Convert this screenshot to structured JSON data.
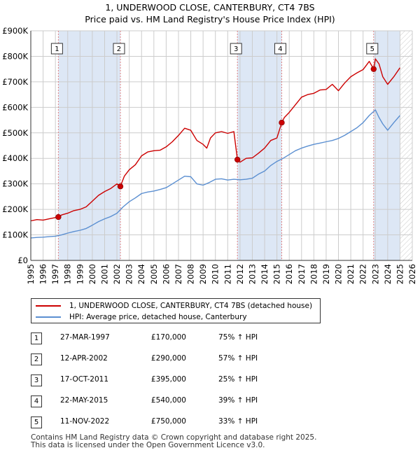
{
  "title_line1": "1, UNDERWOOD CLOSE, CANTERBURY, CT4 7BS",
  "title_line2": "Price paid vs. HM Land Registry's House Price Index (HPI)",
  "legend": {
    "property": "1, UNDERWOOD CLOSE, CANTERBURY, CT4 7BS (detached house)",
    "hpi": "HPI: Average price, detached house, Canterbury"
  },
  "colors": {
    "property_line": "#cc0000",
    "hpi_line": "#5b8fd1",
    "shade": "#dde7f5",
    "marker_line": "#e08080",
    "grid": "#cccccc"
  },
  "chart_data": {
    "type": "line",
    "title": "1, UNDERWOOD CLOSE, CANTERBURY, CT4 7BS — Price paid vs. HM Land Registry's House Price Index (HPI)",
    "xlabel": "",
    "ylabel": "",
    "xlim": [
      1995,
      2026
    ],
    "ylim": [
      0,
      900000
    ],
    "x_ticks": [
      "1995",
      "1996",
      "1997",
      "1998",
      "1999",
      "2000",
      "2001",
      "2002",
      "2003",
      "2004",
      "2005",
      "2006",
      "2007",
      "2008",
      "2009",
      "2010",
      "2011",
      "2012",
      "2013",
      "2014",
      "2015",
      "2016",
      "2017",
      "2018",
      "2019",
      "2020",
      "2021",
      "2022",
      "2023",
      "2024",
      "2025",
      "2026"
    ],
    "y_ticks": [
      {
        "value": 0,
        "label": "£0"
      },
      {
        "value": 100000,
        "label": "£100K"
      },
      {
        "value": 200000,
        "label": "£200K"
      },
      {
        "value": 300000,
        "label": "£300K"
      },
      {
        "value": 400000,
        "label": "£400K"
      },
      {
        "value": 500000,
        "label": "£500K"
      },
      {
        "value": 600000,
        "label": "£600K"
      },
      {
        "value": 700000,
        "label": "£700K"
      },
      {
        "value": 800000,
        "label": "£800K"
      },
      {
        "value": 900000,
        "label": "£900K"
      }
    ],
    "shaded_spans": [
      [
        1997.24,
        2002.28
      ],
      [
        2011.79,
        2015.39
      ],
      [
        2022.86,
        2025.0
      ]
    ],
    "future_hatch_from": 2025.0,
    "series": [
      {
        "name": "1, UNDERWOOD CLOSE, CANTERBURY, CT4 7BS (detached house)",
        "x": [
          1995.0,
          1995.5,
          1996.0,
          1996.5,
          1997.0,
          1997.24,
          1997.5,
          1998.0,
          1998.5,
          1999.0,
          1999.5,
          2000.0,
          2000.5,
          2001.0,
          2001.5,
          2002.0,
          2002.28,
          2002.6,
          2003.0,
          2003.5,
          2004.0,
          2004.5,
          2005.0,
          2005.5,
          2006.0,
          2006.5,
          2007.0,
          2007.5,
          2008.0,
          2008.5,
          2009.0,
          2009.3,
          2009.6,
          2010.0,
          2010.5,
          2011.0,
          2011.5,
          2011.79,
          2012.0,
          2012.5,
          2013.0,
          2013.5,
          2014.0,
          2014.5,
          2015.0,
          2015.39,
          2015.6,
          2016.0,
          2016.5,
          2017.0,
          2017.5,
          2018.0,
          2018.5,
          2019.0,
          2019.5,
          2020.0,
          2020.5,
          2021.0,
          2021.5,
          2022.0,
          2022.5,
          2022.86,
          2023.0,
          2023.3,
          2023.6,
          2024.0,
          2024.5,
          2025.0
        ],
        "values": [
          155000,
          160000,
          158000,
          163000,
          168000,
          170000,
          178000,
          185000,
          195000,
          200000,
          210000,
          232000,
          255000,
          270000,
          282000,
          300000,
          290000,
          330000,
          355000,
          375000,
          410000,
          425000,
          430000,
          432000,
          445000,
          465000,
          490000,
          518000,
          510000,
          470000,
          455000,
          440000,
          480000,
          500000,
          505000,
          498000,
          505000,
          395000,
          385000,
          400000,
          402000,
          420000,
          440000,
          470000,
          480000,
          540000,
          560000,
          580000,
          610000,
          640000,
          650000,
          655000,
          668000,
          670000,
          690000,
          665000,
          695000,
          720000,
          735000,
          748000,
          780000,
          750000,
          790000,
          770000,
          720000,
          690000,
          720000,
          755000
        ]
      },
      {
        "name": "HPI: Average price, detached house, Canterbury",
        "x": [
          1995.0,
          1995.5,
          1996.0,
          1996.5,
          1997.0,
          1997.5,
          1998.0,
          1998.5,
          1999.0,
          1999.5,
          2000.0,
          2000.5,
          2001.0,
          2001.5,
          2002.0,
          2002.5,
          2003.0,
          2003.5,
          2004.0,
          2004.5,
          2005.0,
          2005.5,
          2006.0,
          2006.5,
          2007.0,
          2007.5,
          2008.0,
          2008.5,
          2009.0,
          2009.5,
          2010.0,
          2010.5,
          2011.0,
          2011.5,
          2012.0,
          2012.5,
          2013.0,
          2013.5,
          2014.0,
          2014.5,
          2015.0,
          2015.5,
          2016.0,
          2016.5,
          2017.0,
          2017.5,
          2018.0,
          2018.5,
          2019.0,
          2019.5,
          2020.0,
          2020.5,
          2021.0,
          2021.5,
          2022.0,
          2022.5,
          2023.0,
          2023.3,
          2023.6,
          2024.0,
          2024.5,
          2025.0
        ],
        "values": [
          88000,
          90000,
          91000,
          93000,
          95000,
          100000,
          107000,
          113000,
          118000,
          125000,
          138000,
          152000,
          163000,
          172000,
          185000,
          210000,
          230000,
          245000,
          262000,
          268000,
          272000,
          278000,
          285000,
          300000,
          315000,
          330000,
          328000,
          300000,
          295000,
          305000,
          318000,
          320000,
          315000,
          318000,
          316000,
          318000,
          322000,
          338000,
          350000,
          372000,
          388000,
          400000,
          415000,
          430000,
          440000,
          448000,
          455000,
          460000,
          465000,
          470000,
          478000,
          490000,
          505000,
          520000,
          540000,
          568000,
          590000,
          560000,
          535000,
          510000,
          540000,
          568000
        ]
      }
    ],
    "sales": [
      {
        "label": "1",
        "x": 1997.24,
        "value": 170000
      },
      {
        "label": "2",
        "x": 2002.28,
        "value": 290000
      },
      {
        "label": "3",
        "x": 2011.79,
        "value": 395000
      },
      {
        "label": "4",
        "x": 2015.39,
        "value": 540000
      },
      {
        "label": "5",
        "x": 2022.86,
        "value": 750000
      }
    ]
  },
  "sales_table": [
    {
      "num": "1",
      "date": "27-MAR-1997",
      "price": "£170,000",
      "hpi": "75% ↑ HPI"
    },
    {
      "num": "2",
      "date": "12-APR-2002",
      "price": "£290,000",
      "hpi": "57% ↑ HPI"
    },
    {
      "num": "3",
      "date": "17-OCT-2011",
      "price": "£395,000",
      "hpi": "25% ↑ HPI"
    },
    {
      "num": "4",
      "date": "22-MAY-2015",
      "price": "£540,000",
      "hpi": "39% ↑ HPI"
    },
    {
      "num": "5",
      "date": "11-NOV-2022",
      "price": "£750,000",
      "hpi": "33% ↑ HPI"
    }
  ],
  "footer": {
    "line1": "Contains HM Land Registry data © Crown copyright and database right 2025.",
    "line2": "This data is licensed under the Open Government Licence v3.0."
  }
}
